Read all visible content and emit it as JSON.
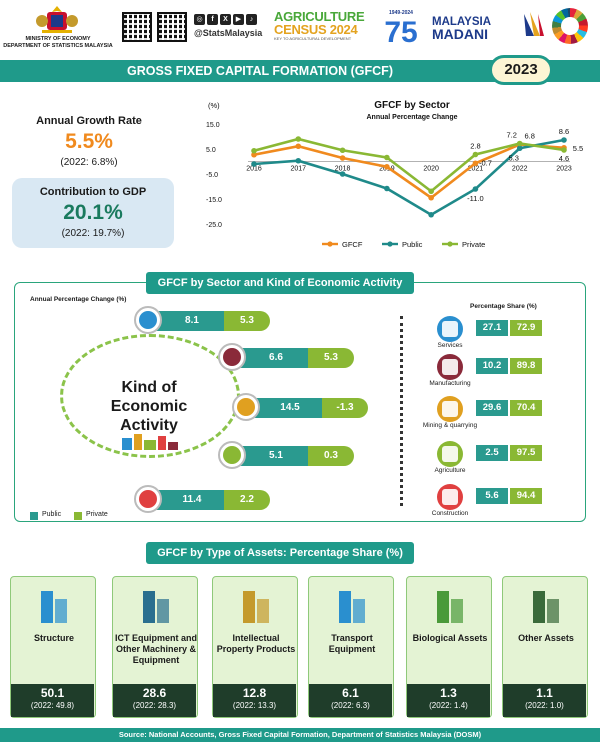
{
  "header": {
    "ministry_line1": "MINISTRY OF ECONOMY",
    "ministry_line2": "DEPARTMENT OF STATISTICS MALAYSIA",
    "handle": "@StatsMalaysia",
    "agri_line1": "AGRICULTURE",
    "agri_line2": "CENSUS 2024",
    "agri_tagline": "KEY TO AGRICULTURAL DEVELOPMENT",
    "anniv_years": "1949-2024",
    "anniv_org": "DOSM",
    "anniv_number": "75",
    "madani_line1": "MALAYSIA",
    "madani_line2": "MADANI",
    "social_icons": [
      "instagram-icon",
      "facebook-icon",
      "x-icon",
      "youtube-icon",
      "tiktok-icon"
    ]
  },
  "title": "GROSS FIXED CAPITAL FORMATION (GFCF)",
  "year": "2023",
  "growth": {
    "label": "Annual Growth Rate",
    "value": "5.5%",
    "prev": "(2022: 6.8%)"
  },
  "contribution": {
    "label": "Contribution to GDP",
    "value": "20.1%",
    "prev": "(2022: 19.7%)"
  },
  "chart_data": [
    {
      "type": "line",
      "title": "GFCF by Sector",
      "subtitle": "Annual Percentage Change",
      "ylabel": "(%)",
      "xlabel": "",
      "ylim": [
        -25.0,
        15.0
      ],
      "yticks": [
        "15.0",
        "5.0",
        "-5.0",
        "-15.0",
        "-25.0"
      ],
      "x": [
        "2016",
        "2017",
        "2018",
        "2019",
        "2020",
        "2021",
        "2022",
        "2023"
      ],
      "legend_position": "bottom",
      "series": [
        {
          "name": "GFCF",
          "color": "#f08a1e",
          "values": [
            2.7,
            6.1,
            1.4,
            -2.1,
            -14.5,
            -0.7,
            6.8,
            5.5
          ]
        },
        {
          "name": "Public",
          "color": "#1f8a8a",
          "values": [
            -1.0,
            0.3,
            -5.0,
            -10.8,
            -21.3,
            -11.0,
            5.3,
            8.6
          ]
        },
        {
          "name": "Private",
          "color": "#8ab834",
          "values": [
            4.3,
            9.0,
            4.5,
            1.6,
            -11.9,
            2.8,
            7.2,
            4.6
          ]
        }
      ],
      "data_labels": [
        {
          "series": "Private",
          "x": "2021",
          "text": "2.8"
        },
        {
          "series": "GFCF",
          "x": "2021",
          "text": "-0.7"
        },
        {
          "series": "Public",
          "x": "2021",
          "text": "-11.0"
        },
        {
          "series": "Private",
          "x": "2022",
          "text": "7.2"
        },
        {
          "series": "GFCF",
          "x": "2022",
          "text": "6.8"
        },
        {
          "series": "Public",
          "x": "2022",
          "text": "5.3"
        },
        {
          "series": "Public",
          "x": "2023",
          "text": "8.6"
        },
        {
          "series": "GFCF",
          "x": "2023",
          "text": "5.5"
        },
        {
          "series": "Private",
          "x": "2023",
          "text": "4.6"
        }
      ]
    },
    {
      "type": "bar",
      "title": "GFCF by Sector and Kind of Economic Activity",
      "ylabel": "Annual Percentage Change (%)",
      "xlabel": "",
      "categories": [
        "Services",
        "Manufacturing",
        "Mining & quarrying",
        "Agriculture",
        "Construction"
      ],
      "series": [
        {
          "name": "Public",
          "color": "#2a9a8f",
          "values": [
            8.1,
            6.6,
            14.5,
            5.1,
            11.4
          ]
        },
        {
          "name": "Private",
          "color": "#8ab834",
          "values": [
            5.3,
            5.3,
            -1.3,
            0.3,
            2.2
          ]
        }
      ],
      "legend_position": "bottom-left"
    },
    {
      "type": "table",
      "title": "Percentage Share (%)",
      "categories": [
        "Services",
        "Manufacturing",
        "Mining & quarrying",
        "Agriculture",
        "Construction"
      ],
      "series": [
        {
          "name": "Public",
          "values": [
            27.1,
            10.2,
            29.6,
            2.5,
            5.6
          ]
        },
        {
          "name": "Private",
          "values": [
            72.9,
            89.8,
            70.4,
            97.5,
            94.4
          ]
        }
      ]
    },
    {
      "type": "bar",
      "title": "GFCF by Type of Assets: Percentage Share (%)",
      "categories": [
        "Structure",
        "ICT Equipment and Other Machinery & Equipment",
        "Intellectual Property Products",
        "Transport Equipment",
        "Biological Assets",
        "Other Assets"
      ],
      "values": [
        50.1,
        28.6,
        12.8,
        6.1,
        1.3,
        1.1
      ],
      "prev_values": [
        49.8,
        28.3,
        13.3,
        6.3,
        1.4,
        1.0
      ]
    }
  ],
  "kind_label_line1": "Kind of",
  "kind_label_line2": "Economic",
  "kind_label_line3": "Activity",
  "legend_public": "Public",
  "legend_private": "Private",
  "section2": {
    "title": "GFCF by Sector and Kind of Economic Activity",
    "apc_label": "Annual Percentage Change (%)",
    "share_label": "Percentage Share (%)",
    "icons": [
      "services-icon",
      "manufacturing-icon",
      "mining-icon",
      "agriculture-icon",
      "construction-icon"
    ],
    "icon_colors": [
      "#2a8fcf",
      "#8a2a3a",
      "#e0a020",
      "#8ab834",
      "#e04040"
    ],
    "rows": [
      {
        "pub": "8.1",
        "pri": "5.3"
      },
      {
        "pub": "6.6",
        "pri": "5.3"
      },
      {
        "pub": "14.5",
        "pri": "-1.3"
      },
      {
        "pub": "5.1",
        "pri": "0.3"
      },
      {
        "pub": "11.4",
        "pri": "2.2"
      }
    ],
    "shares": [
      {
        "name": "Services",
        "pub": "27.1",
        "pri": "72.9"
      },
      {
        "name": "Manufacturing",
        "pub": "10.2",
        "pri": "89.8"
      },
      {
        "name": "Mining & quarrying",
        "pub": "29.6",
        "pri": "70.4"
      },
      {
        "name": "Agriculture",
        "pub": "2.5",
        "pri": "97.5"
      },
      {
        "name": "Construction",
        "pub": "5.6",
        "pri": "94.4"
      }
    ]
  },
  "section3": {
    "title": "GFCF by Type of Assets: Percentage Share (%)",
    "assets": [
      {
        "name": "Structure",
        "value": "50.1",
        "prev": "(2022: 49.8)",
        "icon": "building-icon"
      },
      {
        "name": "ICT Equipment and Other Machinery & Equipment",
        "value": "28.6",
        "prev": "(2022: 28.3)",
        "icon": "computer-icon"
      },
      {
        "name": "Intellectual Property Products",
        "value": "12.8",
        "prev": "(2022: 13.3)",
        "icon": "film-book-icon"
      },
      {
        "name": "Transport Equipment",
        "value": "6.1",
        "prev": "(2022: 6.3)",
        "icon": "ship-plane-icon"
      },
      {
        "name": "Biological Assets",
        "value": "1.3",
        "prev": "(2022: 1.4)",
        "icon": "palm-cow-icon"
      },
      {
        "name": "Other Assets",
        "value": "1.1",
        "prev": "(2022: 1.0)",
        "icon": "tank-cannon-icon"
      }
    ]
  },
  "footer": "Source: National Accounts, Gross Fixed Capital Formation, Department of Statistics Malaysia (DOSM)"
}
